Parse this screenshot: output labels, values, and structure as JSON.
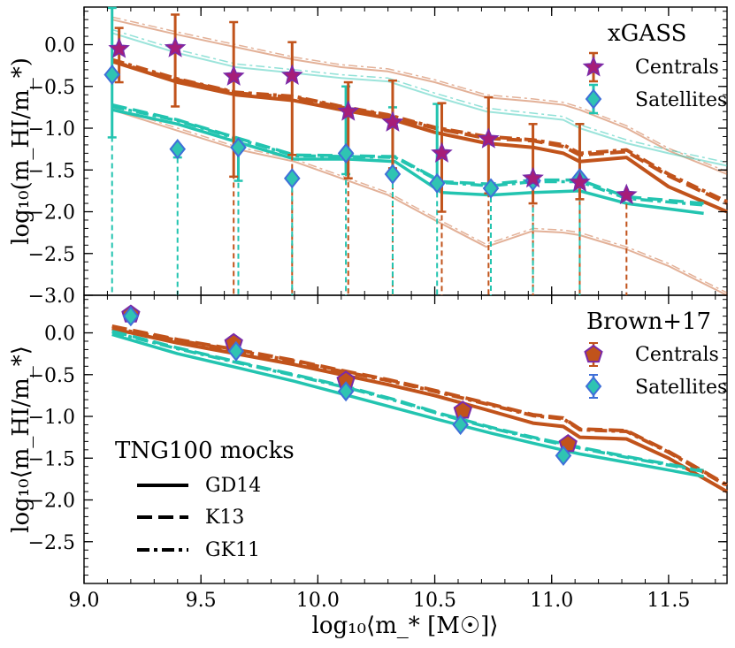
{
  "colors": {
    "orange": "#c1531b",
    "teal": "#23c4b0",
    "star_fill": "#a61d78",
    "star_edge": "#7a2aa8",
    "diamond_fill": "#2fc4b2",
    "diamond_edge": "#3f6fd8",
    "pent_fill": "#c1531b",
    "pent_edge": "#7a2aa8"
  },
  "chart_data": [
    {
      "type": "line",
      "panel": "top",
      "ylabel": "log₁₀(m_HI/m_*)",
      "xlim": [
        9.0,
        11.75
      ],
      "ylim": [
        -3.0,
        0.45
      ],
      "yticks": [
        0.0,
        -0.5,
        -1.0,
        -1.5,
        -2.0,
        -2.5,
        -3.0
      ],
      "ytick_labels": [
        "0.0",
        "−0.5",
        "−1.0",
        "−1.5",
        "−2.0",
        "−2.5",
        "−3.0"
      ],
      "legend": {
        "title": "xGASS",
        "entries": [
          "Centrals",
          "Satellites"
        ]
      },
      "observations": {
        "centrals": {
          "x": [
            9.15,
            9.39,
            9.64,
            9.89,
            10.13,
            10.32,
            10.53,
            10.73,
            10.92,
            11.12,
            11.32
          ],
          "y": [
            -0.05,
            -0.04,
            -0.38,
            -0.37,
            -0.8,
            -0.93,
            -1.3,
            -1.13,
            -1.6,
            -1.65,
            -1.8
          ],
          "err_up": [
            0.25,
            0.4,
            0.65,
            0.4,
            0.35,
            0.5,
            0.6,
            0.5,
            0.65,
            0.7,
            0.0
          ],
          "err_down": [
            0.4,
            0.7,
            1.2,
            0.95,
            0.8,
            0.55,
            0.7,
            0.65,
            0.3,
            0.2,
            0.0
          ],
          "upper_limit_bottom": [
            null,
            null,
            -3.0,
            -3.0,
            -3.0,
            -3.0,
            -3.0,
            -3.0,
            -3.0,
            -3.0,
            -3.0
          ]
        },
        "satellites": {
          "x": [
            9.12,
            9.4,
            9.66,
            9.89,
            10.12,
            10.32,
            10.51,
            10.74,
            10.92,
            11.12
          ],
          "y": [
            -0.36,
            -1.25,
            -1.23,
            -1.6,
            -1.3,
            -1.55,
            -1.66,
            -1.72,
            -1.63,
            -1.6
          ],
          "err_up": [
            0.8,
            0.0,
            0.0,
            0.0,
            0.8,
            0.8,
            0.95,
            0.0,
            0.0,
            0.65
          ],
          "err_down": [
            0.75,
            0.1,
            0.4,
            0.0,
            0.25,
            0.0,
            0.0,
            0.0,
            0.0,
            0.0
          ],
          "upper_limit_bottom": [
            -3.0,
            -3.0,
            -3.0,
            -3.0,
            -3.0,
            -3.0,
            -3.0,
            -3.0,
            -3.0,
            -3.0
          ]
        }
      },
      "mocks": {
        "x": [
          9.12,
          9.4,
          9.65,
          9.9,
          10.1,
          10.3,
          10.5,
          10.72,
          10.92,
          11.05,
          11.12,
          11.32,
          11.5,
          11.75
        ],
        "centrals": {
          "GD14": [
            -0.2,
            -0.45,
            -0.6,
            -0.67,
            -0.78,
            -0.88,
            -1.05,
            -1.18,
            -1.23,
            -1.3,
            -1.4,
            -1.35,
            -1.7,
            -2.0
          ],
          "K13": [
            -0.2,
            -0.42,
            -0.58,
            -0.63,
            -0.75,
            -0.85,
            -1.0,
            -1.12,
            -1.15,
            -1.22,
            -1.32,
            -1.28,
            -1.57,
            -1.9
          ],
          "GK11": [
            -0.18,
            -0.41,
            -0.57,
            -0.62,
            -0.74,
            -0.84,
            -0.99,
            -1.1,
            -1.14,
            -1.2,
            -1.3,
            -1.26,
            -1.55,
            -1.88
          ]
        },
        "satellites": {
          "x": [
            9.12,
            9.4,
            9.66,
            9.9,
            10.13,
            10.33,
            10.53,
            10.74,
            10.92,
            11.12,
            11.32,
            11.65
          ],
          "GD14": [
            -0.78,
            -0.95,
            -1.17,
            -1.37,
            -1.37,
            -1.4,
            -1.77,
            -1.8,
            -1.77,
            -1.75,
            -1.9,
            -2.02
          ],
          "K13": [
            -0.72,
            -0.9,
            -1.12,
            -1.32,
            -1.33,
            -1.34,
            -1.64,
            -1.67,
            -1.62,
            -1.62,
            -1.82,
            -1.9
          ],
          "GK11": [
            -0.74,
            -0.91,
            -1.13,
            -1.33,
            -1.34,
            -1.35,
            -1.65,
            -1.69,
            -1.64,
            -1.64,
            -1.84,
            -1.92
          ]
        },
        "percentile_bands": {
          "centrals_upper": [
            0.3,
            0.12,
            -0.03,
            -0.18,
            -0.27,
            -0.32,
            -0.45,
            -0.63,
            -0.68,
            -0.72,
            -0.78,
            -1.0,
            -1.27,
            -1.55
          ],
          "centrals_lower": [
            -0.78,
            -1.03,
            -1.25,
            -1.4,
            -1.6,
            -1.8,
            -2.1,
            -2.42,
            -2.23,
            -2.25,
            -2.28,
            -2.45,
            -2.65,
            -3.0
          ],
          "satellites_upper": [
            0.14,
            -0.1,
            -0.27,
            -0.34,
            -0.4,
            -0.44,
            -0.62,
            -0.8,
            -0.86,
            -0.9,
            -1.0,
            -1.18,
            -1.3,
            -1.45
          ]
        }
      }
    },
    {
      "type": "line",
      "panel": "bottom",
      "xlabel": "log₁₀⟨m_* [M☉]⟩",
      "ylabel": "log₁₀⟨m_HI/m_*⟩",
      "xlim": [
        9.0,
        11.75
      ],
      "ylim": [
        -3.0,
        0.45
      ],
      "xticks": [
        9.0,
        9.5,
        10.0,
        10.5,
        11.0,
        11.5
      ],
      "xtick_labels": [
        "9.0",
        "9.5",
        "10.0",
        "10.5",
        "11.0",
        "11.5"
      ],
      "yticks": [
        0.0,
        -0.5,
        -1.0,
        -1.5,
        -2.0,
        -2.5
      ],
      "ytick_labels": [
        "0.0",
        "−0.5",
        "−1.0",
        "−1.5",
        "−2.0",
        "−2.5"
      ],
      "legend": {
        "title": "Brown+17",
        "entries": [
          "Centrals",
          "Satellites"
        ]
      },
      "mock_legend": {
        "title": "TNG100 mocks",
        "entries": [
          "GD14",
          "K13",
          "GK11"
        ]
      },
      "observations": {
        "centrals": {
          "x": [
            9.2,
            9.64,
            10.12,
            10.62,
            11.07
          ],
          "y": [
            0.22,
            -0.12,
            -0.57,
            -0.93,
            -1.33
          ],
          "err": [
            0.05,
            0.04,
            0.04,
            0.04,
            0.05
          ]
        },
        "satellites": {
          "x": [
            9.2,
            9.65,
            10.12,
            10.61,
            11.05
          ],
          "y": [
            0.2,
            -0.22,
            -0.7,
            -1.1,
            -1.47
          ],
          "err": [
            0.08,
            0.05,
            0.05,
            0.05,
            0.06
          ]
        }
      },
      "mocks": {
        "x": [
          9.12,
          9.4,
          9.65,
          9.9,
          10.1,
          10.3,
          10.5,
          10.72,
          10.92,
          11.05,
          11.12,
          11.32,
          11.5,
          11.75
        ],
        "centrals": {
          "GD14": [
            0.05,
            -0.12,
            -0.25,
            -0.38,
            -0.5,
            -0.62,
            -0.75,
            -0.92,
            -1.08,
            -1.12,
            -1.25,
            -1.27,
            -1.5,
            -1.9
          ],
          "K13": [
            0.08,
            -0.08,
            -0.2,
            -0.33,
            -0.45,
            -0.56,
            -0.69,
            -0.84,
            -0.98,
            -1.02,
            -1.15,
            -1.17,
            -1.42,
            -1.82
          ],
          "GK11": [
            0.06,
            -0.09,
            -0.21,
            -0.34,
            -0.46,
            -0.57,
            -0.7,
            -0.85,
            -0.99,
            -1.03,
            -1.16,
            -1.18,
            -1.43,
            -1.83
          ]
        },
        "satellites": {
          "x": [
            9.12,
            9.4,
            9.66,
            9.9,
            10.13,
            10.33,
            10.53,
            10.74,
            10.92,
            11.12,
            11.32,
            11.65
          ],
          "GD14": [
            -0.02,
            -0.25,
            -0.42,
            -0.58,
            -0.75,
            -0.9,
            -1.05,
            -1.2,
            -1.32,
            -1.45,
            -1.55,
            -1.72
          ],
          "K13": [
            0.02,
            -0.18,
            -0.35,
            -0.5,
            -0.65,
            -0.8,
            -0.97,
            -1.13,
            -1.25,
            -1.37,
            -1.48,
            -1.65
          ],
          "GK11": [
            0.01,
            -0.19,
            -0.36,
            -0.51,
            -0.66,
            -0.81,
            -0.98,
            -1.14,
            -1.26,
            -1.38,
            -1.49,
            -1.66
          ]
        }
      }
    }
  ]
}
